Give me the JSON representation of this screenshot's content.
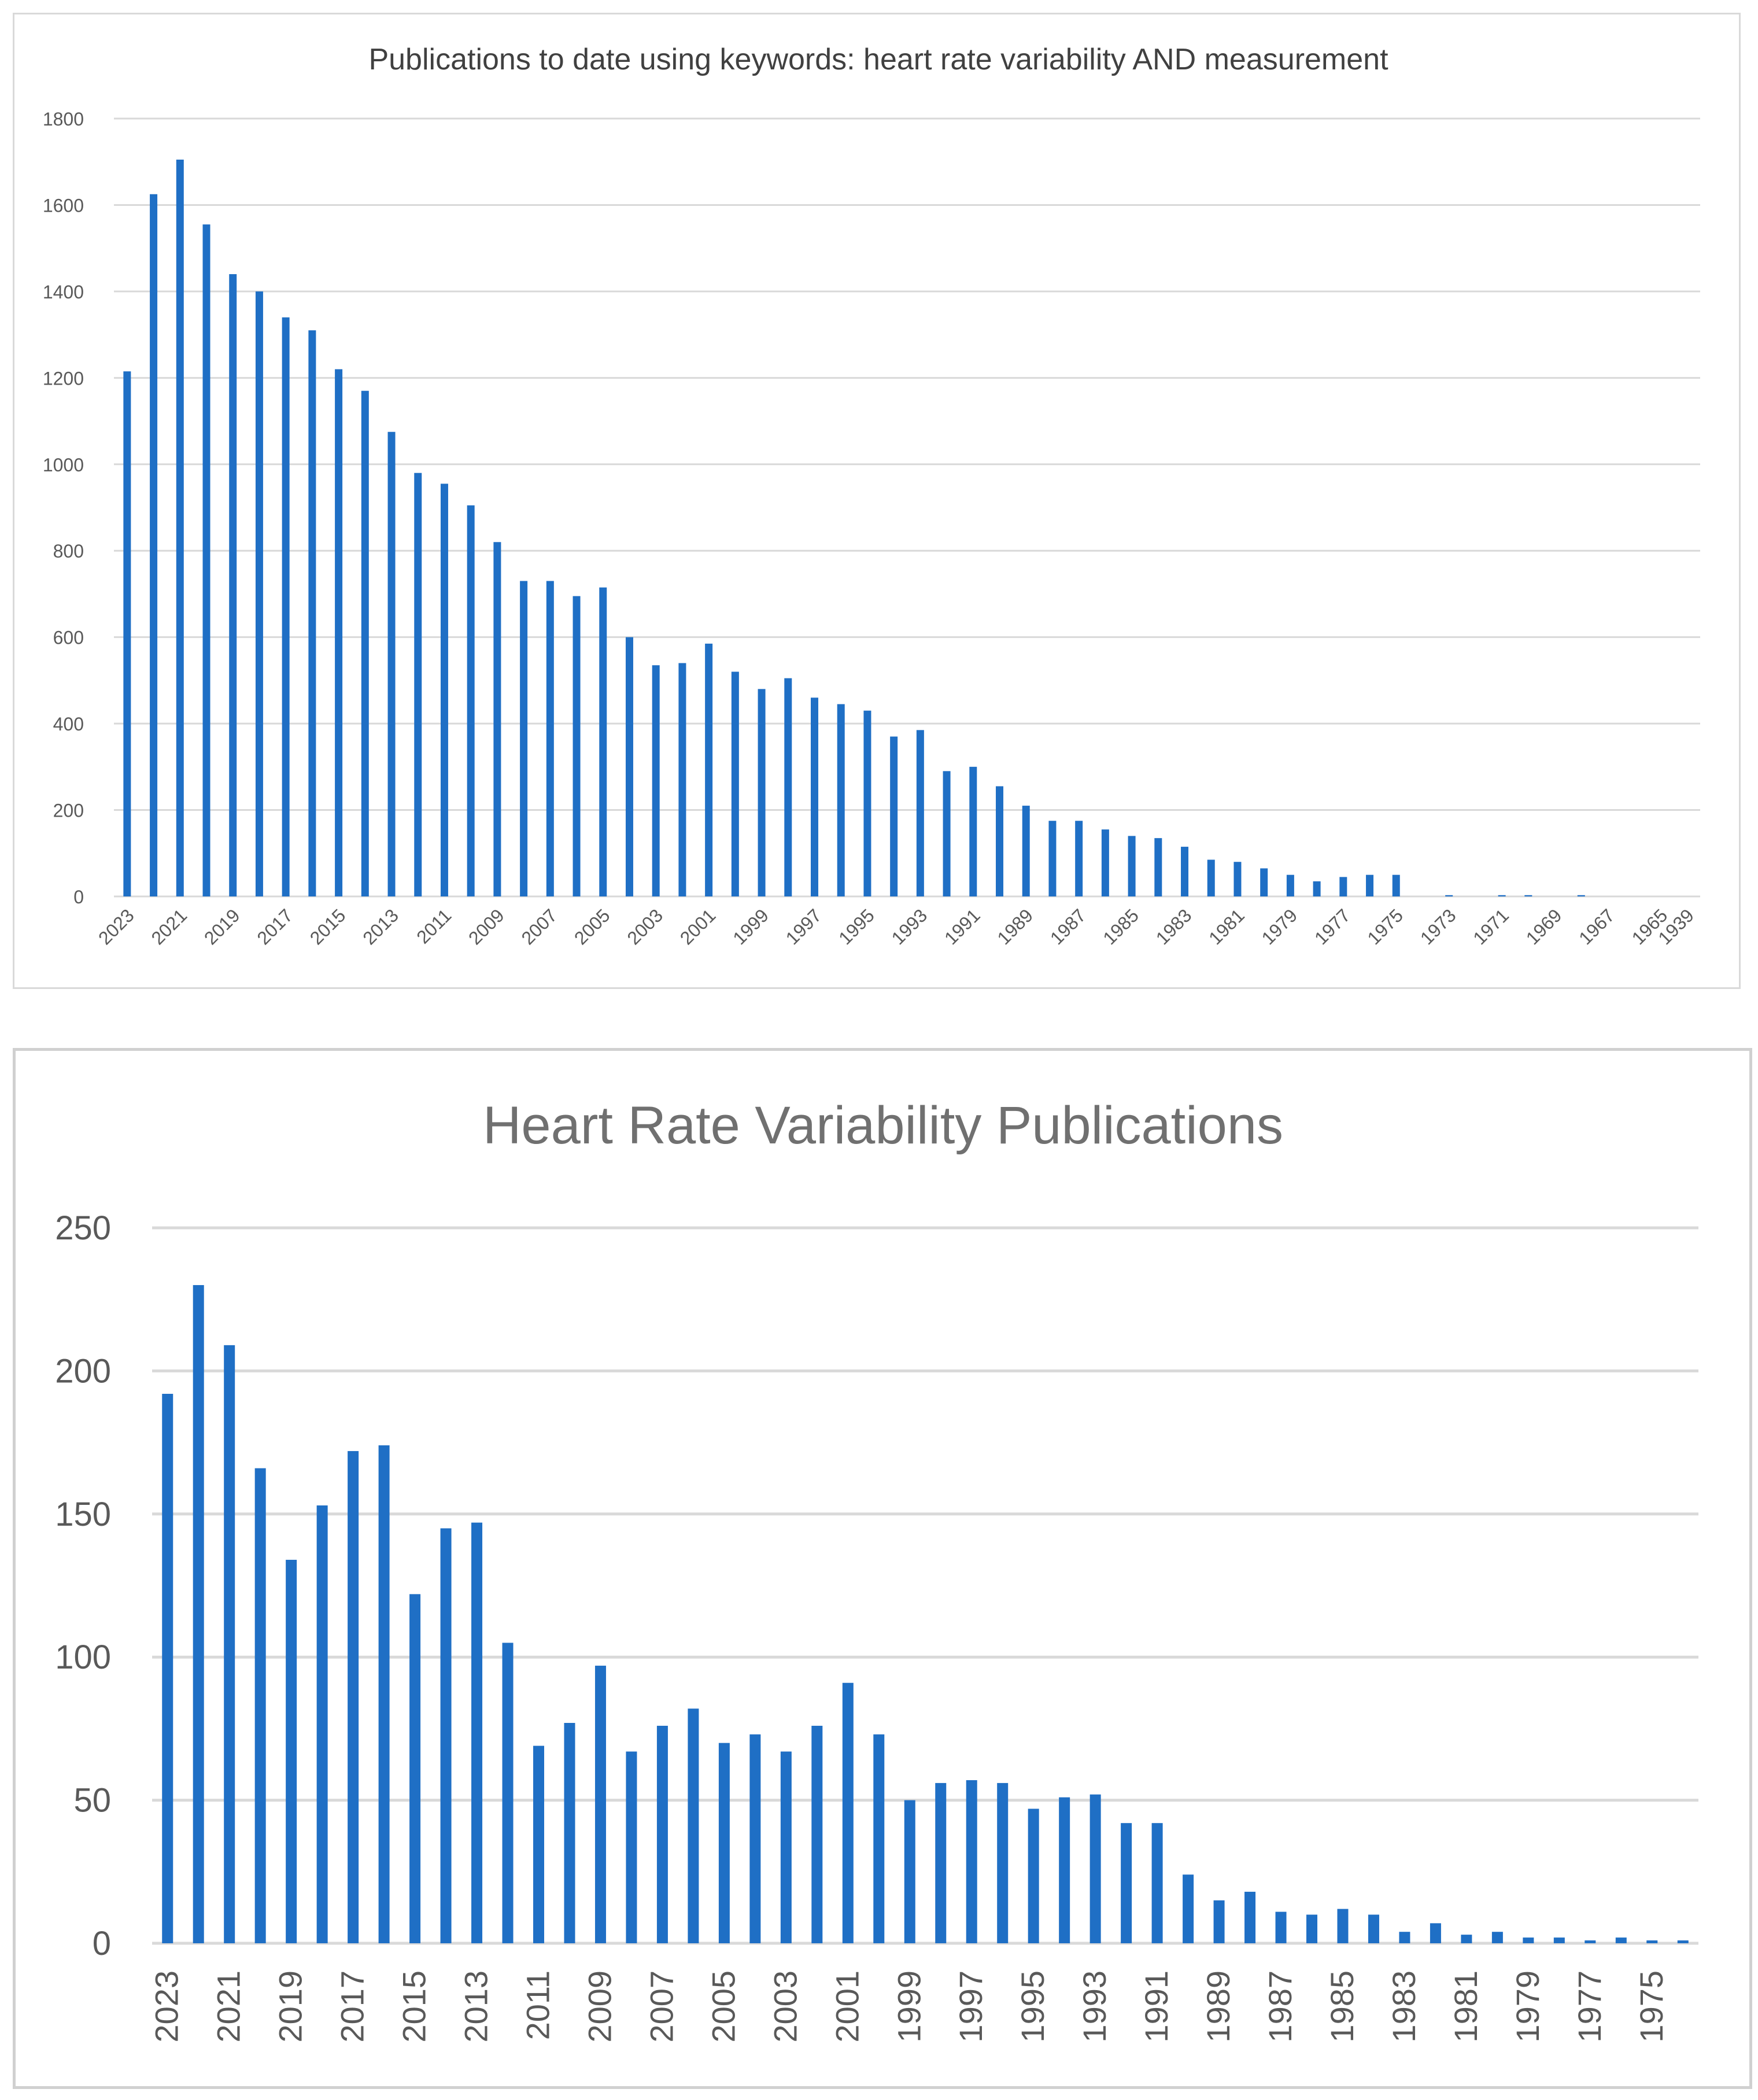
{
  "chart_data": [
    {
      "type": "bar",
      "title": "Publications to date using keywords: heart rate variability AND measurement",
      "xlabel": "",
      "ylabel": "",
      "ylim": [
        0,
        1800
      ],
      "yticks": [
        0,
        200,
        400,
        600,
        800,
        1000,
        1200,
        1400,
        1600,
        1800
      ],
      "grid": true,
      "color": "#1f6fc5",
      "categories": [
        "2023",
        "2022",
        "2021",
        "2020",
        "2019",
        "2018",
        "2017",
        "2016",
        "2015",
        "2014",
        "2013",
        "2012",
        "2011",
        "2010",
        "2009",
        "2008",
        "2007",
        "2006",
        "2005",
        "2004",
        "2003",
        "2002",
        "2001",
        "2000",
        "1999",
        "1998",
        "1997",
        "1996",
        "1995",
        "1994",
        "1993",
        "1992",
        "1991",
        "1990",
        "1989",
        "1988",
        "1987",
        "1986",
        "1985",
        "1984",
        "1983",
        "1982",
        "1981",
        "1980",
        "1979",
        "1978",
        "1977",
        "1976",
        "1975",
        "1974",
        "1973",
        "1972",
        "1971",
        "1970",
        "1969",
        "1968",
        "1967",
        "1966",
        "1965",
        "1939"
      ],
      "tick_labels": [
        "2023",
        "2021",
        "2019",
        "2017",
        "2015",
        "2013",
        "2011",
        "2009",
        "2007",
        "2005",
        "2003",
        "2001",
        "1999",
        "1997",
        "1995",
        "1993",
        "1991",
        "1989",
        "1987",
        "1985",
        "1983",
        "1981",
        "1979",
        "1977",
        "1975",
        "1973",
        "1971",
        "1969",
        "1967",
        "1965",
        "1939"
      ],
      "values": [
        1215,
        1625,
        1705,
        1555,
        1440,
        1400,
        1340,
        1310,
        1220,
        1170,
        1075,
        980,
        955,
        905,
        820,
        730,
        730,
        695,
        715,
        600,
        535,
        540,
        585,
        520,
        480,
        505,
        460,
        445,
        430,
        370,
        385,
        290,
        300,
        255,
        210,
        175,
        175,
        155,
        140,
        135,
        115,
        85,
        80,
        65,
        50,
        35,
        45,
        50,
        50,
        0,
        3,
        0,
        3,
        3,
        0,
        3,
        0,
        0,
        0,
        0
      ]
    },
    {
      "type": "bar",
      "title": "Heart Rate Variability Publications",
      "xlabel": "",
      "ylabel": "",
      "ylim": [
        0,
        250
      ],
      "yticks": [
        0,
        50,
        100,
        150,
        200,
        250
      ],
      "grid": true,
      "color": "#1f6fc5",
      "categories": [
        "2023",
        "2022",
        "2021",
        "2020",
        "2019",
        "2018",
        "2017",
        "2016",
        "2015",
        "2014",
        "2013",
        "2012",
        "2011",
        "2010",
        "2009",
        "2008",
        "2007",
        "2006",
        "2005",
        "2004",
        "2003",
        "2002",
        "2001",
        "2000",
        "1999",
        "1998",
        "1997",
        "1996",
        "1995",
        "1994",
        "1993",
        "1992",
        "1991",
        "1990",
        "1989",
        "1988",
        "1987",
        "1986",
        "1985",
        "1984",
        "1983",
        "1982",
        "1981",
        "1980",
        "1979",
        "1978",
        "1977",
        "1976",
        "1975",
        "1974"
      ],
      "tick_labels": [
        "2023",
        "2021",
        "2019",
        "2017",
        "2015",
        "2013",
        "2011",
        "2009",
        "2007",
        "2005",
        "2003",
        "2001",
        "1999",
        "1997",
        "1995",
        "1993",
        "1991",
        "1989",
        "1987",
        "1985",
        "1983",
        "1981",
        "1979",
        "1977",
        "1975"
      ],
      "values": [
        192,
        230,
        209,
        166,
        134,
        153,
        172,
        174,
        122,
        145,
        147,
        105,
        69,
        77,
        97,
        67,
        76,
        82,
        70,
        73,
        67,
        76,
        91,
        73,
        50,
        56,
        57,
        56,
        47,
        51,
        52,
        42,
        42,
        24,
        15,
        18,
        11,
        10,
        12,
        10,
        4,
        7,
        3,
        4,
        2,
        2,
        1,
        2,
        1,
        1
      ]
    }
  ]
}
